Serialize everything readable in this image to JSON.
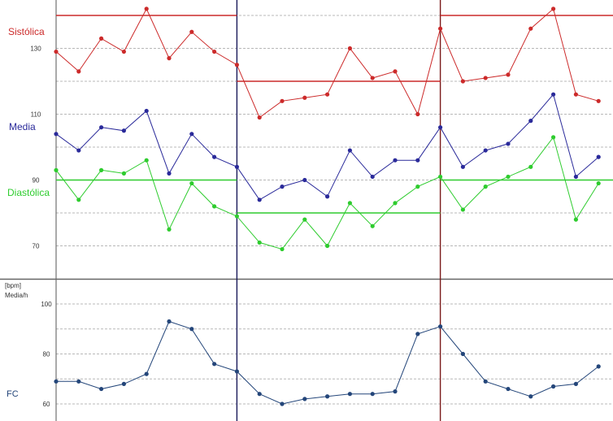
{
  "colors": {
    "systolic": "#cc2a2a",
    "mean": "#2a2a9a",
    "diastolic": "#2ecc2e",
    "hr": "#24467a",
    "grid": "#b8b8b8",
    "frame": "#555555",
    "divider_blue": "#1a1a5a",
    "divider_red": "#7a1a1a"
  },
  "chart_data": [
    {
      "type": "line",
      "panel": "blood-pressure",
      "yticks": [
        70,
        90,
        110,
        130
      ],
      "ylim": [
        62,
        143
      ],
      "x": [
        0,
        1,
        2,
        3,
        4,
        5,
        6,
        7,
        8,
        9,
        10,
        11,
        12,
        13,
        14,
        15,
        16,
        17,
        18,
        19,
        20,
        21,
        22,
        23,
        24
      ],
      "section_boundaries": [
        8,
        17
      ],
      "series": [
        {
          "name": "Sistólica",
          "color_key": "systolic",
          "values": [
            129,
            123,
            133,
            129,
            142,
            127,
            135,
            129,
            125,
            109,
            114,
            115,
            116,
            130,
            121,
            123,
            110,
            136,
            120,
            121,
            122,
            136,
            142,
            116,
            114
          ]
        },
        {
          "name": "Media",
          "color_key": "mean",
          "values": [
            104,
            99,
            106,
            105,
            111,
            92,
            104,
            97,
            94,
            84,
            88,
            90,
            85,
            99,
            91,
            96,
            96,
            106,
            94,
            99,
            101,
            108,
            116,
            91,
            97
          ]
        },
        {
          "name": "Diastólica",
          "color_key": "diastolic",
          "values": [
            93,
            84,
            93,
            92,
            96,
            75,
            89,
            82,
            79,
            71,
            69,
            78,
            70,
            83,
            76,
            83,
            88,
            91,
            81,
            88,
            91,
            94,
            103,
            78,
            89
          ]
        }
      ],
      "thresholds": [
        {
          "series": "Sistólica",
          "segments": [
            {
              "from": 0,
              "to": 8,
              "value": 140
            },
            {
              "from": 8,
              "to": 17,
              "value": 120
            },
            {
              "from": 17,
              "to": 24,
              "value": 140
            }
          ]
        },
        {
          "series": "Diastólica",
          "segments": [
            {
              "from": 0,
              "to": 8,
              "value": 90
            },
            {
              "from": 8,
              "to": 17,
              "value": 80
            },
            {
              "from": 17,
              "to": 24,
              "value": 90
            }
          ]
        }
      ],
      "labels": {
        "systolic": "Sistólica",
        "mean": "Media",
        "diastolic": "Diastólica"
      }
    },
    {
      "type": "line",
      "panel": "heart-rate",
      "unit": "[bpm]",
      "sublabel": "Media/h",
      "label": "FC",
      "yticks": [
        60,
        80,
        100
      ],
      "ylim": [
        53,
        107
      ],
      "x": [
        0,
        1,
        2,
        3,
        4,
        5,
        6,
        7,
        8,
        9,
        10,
        11,
        12,
        13,
        14,
        15,
        16,
        17,
        18,
        19,
        20,
        21,
        22,
        23,
        24
      ],
      "series": [
        {
          "name": "FC",
          "color_key": "hr",
          "values": [
            69,
            69,
            66,
            68,
            72,
            93,
            90,
            76,
            73,
            64,
            60,
            62,
            63,
            64,
            64,
            65,
            88,
            91,
            80,
            69,
            66,
            63,
            67,
            68,
            75
          ]
        }
      ]
    }
  ]
}
